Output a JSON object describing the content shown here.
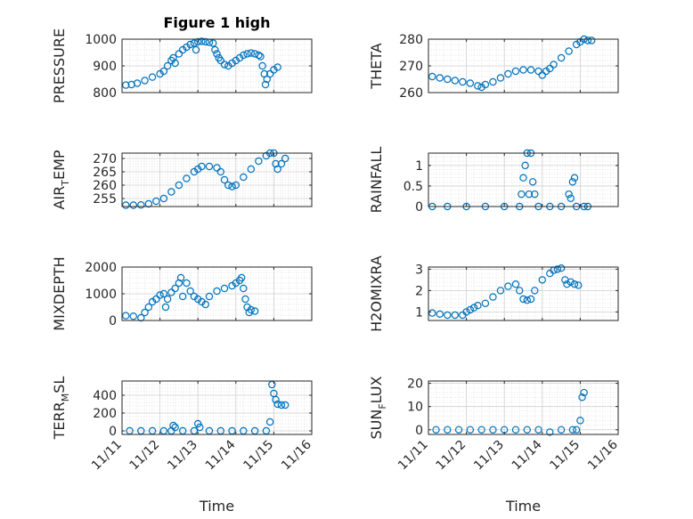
{
  "figure_title": "Figure 1 high",
  "marker_color": "#0072bd",
  "chart_data": [
    {
      "type": "scatter",
      "ylabel": "PRESSURE",
      "title": "Figure 1 high",
      "grid": true,
      "xlim": [
        0,
        5
      ],
      "ylim": [
        800,
        1000
      ],
      "yticks": [
        800,
        900,
        1000
      ],
      "ytick_labels": [
        "800",
        "900",
        "1000"
      ],
      "xticks": [
        0,
        1,
        2,
        3,
        4,
        5
      ],
      "xtick_labels": [],
      "xlabel": "",
      "points": [
        [
          0.1,
          828
        ],
        [
          0.25,
          830
        ],
        [
          0.4,
          835
        ],
        [
          0.6,
          845
        ],
        [
          0.8,
          858
        ],
        [
          1.0,
          870
        ],
        [
          1.1,
          880
        ],
        [
          1.2,
          900
        ],
        [
          1.3,
          920
        ],
        [
          1.35,
          930
        ],
        [
          1.4,
          910
        ],
        [
          1.5,
          945
        ],
        [
          1.6,
          960
        ],
        [
          1.7,
          970
        ],
        [
          1.8,
          980
        ],
        [
          1.9,
          985
        ],
        [
          1.95,
          960
        ],
        [
          2.0,
          990
        ],
        [
          2.1,
          992
        ],
        [
          2.2,
          990
        ],
        [
          2.3,
          988
        ],
        [
          2.4,
          985
        ],
        [
          2.45,
          960
        ],
        [
          2.5,
          945
        ],
        [
          2.55,
          930
        ],
        [
          2.6,
          920
        ],
        [
          2.7,
          905
        ],
        [
          2.8,
          900
        ],
        [
          2.9,
          910
        ],
        [
          3.0,
          920
        ],
        [
          3.1,
          930
        ],
        [
          3.2,
          940
        ],
        [
          3.3,
          945
        ],
        [
          3.4,
          948
        ],
        [
          3.5,
          945
        ],
        [
          3.6,
          940
        ],
        [
          3.65,
          935
        ],
        [
          3.7,
          900
        ],
        [
          3.75,
          870
        ],
        [
          3.78,
          830
        ],
        [
          3.82,
          850
        ],
        [
          3.9,
          870
        ],
        [
          4.0,
          885
        ],
        [
          4.1,
          895
        ]
      ]
    },
    {
      "type": "scatter",
      "ylabel": "THETA",
      "grid": true,
      "xlim": [
        0,
        5
      ],
      "ylim": [
        260,
        280
      ],
      "yticks": [
        260,
        270,
        280
      ],
      "ytick_labels": [
        "260",
        "270",
        "280"
      ],
      "xticks": [
        0,
        1,
        2,
        3,
        4,
        5
      ],
      "xtick_labels": [],
      "xlabel": "",
      "points": [
        [
          0.1,
          266
        ],
        [
          0.3,
          265.5
        ],
        [
          0.5,
          265
        ],
        [
          0.7,
          264.5
        ],
        [
          0.9,
          264
        ],
        [
          1.1,
          263.5
        ],
        [
          1.3,
          262.5
        ],
        [
          1.4,
          262
        ],
        [
          1.5,
          263
        ],
        [
          1.7,
          264
        ],
        [
          1.9,
          265.5
        ],
        [
          2.1,
          267
        ],
        [
          2.3,
          268
        ],
        [
          2.5,
          268.5
        ],
        [
          2.7,
          268.5
        ],
        [
          2.9,
          268
        ],
        [
          3.0,
          266.5
        ],
        [
          3.1,
          268
        ],
        [
          3.2,
          269
        ],
        [
          3.3,
          270.5
        ],
        [
          3.5,
          273
        ],
        [
          3.7,
          275.5
        ],
        [
          3.9,
          278
        ],
        [
          4.0,
          279
        ],
        [
          4.1,
          280
        ],
        [
          4.2,
          279.5
        ],
        [
          4.3,
          279.5
        ]
      ]
    },
    {
      "type": "scatter",
      "ylabel": "AIR_TEMP",
      "ylabel_parts": [
        "AIR",
        "T",
        "EMP"
      ],
      "grid": true,
      "xlim": [
        0,
        5
      ],
      "ylim": [
        252,
        272
      ],
      "yticks": [
        255,
        260,
        265,
        270
      ],
      "ytick_labels": [
        "255",
        "260",
        "265",
        "270"
      ],
      "xticks": [
        0,
        1,
        2,
        3,
        4,
        5
      ],
      "xtick_labels": [],
      "xlabel": "",
      "points": [
        [
          0.1,
          252.5
        ],
        [
          0.3,
          252.5
        ],
        [
          0.5,
          252.6
        ],
        [
          0.7,
          253
        ],
        [
          0.9,
          254
        ],
        [
          1.1,
          255
        ],
        [
          1.3,
          257.5
        ],
        [
          1.5,
          260
        ],
        [
          1.7,
          262.5
        ],
        [
          1.9,
          265
        ],
        [
          2.0,
          266
        ],
        [
          2.1,
          267
        ],
        [
          2.3,
          267
        ],
        [
          2.5,
          266.5
        ],
        [
          2.6,
          265
        ],
        [
          2.7,
          262
        ],
        [
          2.8,
          260
        ],
        [
          2.9,
          259.5
        ],
        [
          3.0,
          260
        ],
        [
          3.2,
          263
        ],
        [
          3.4,
          266
        ],
        [
          3.6,
          269
        ],
        [
          3.8,
          271
        ],
        [
          3.9,
          272
        ],
        [
          4.0,
          272
        ],
        [
          4.05,
          268
        ],
        [
          4.1,
          266
        ],
        [
          4.2,
          268
        ],
        [
          4.3,
          270
        ]
      ]
    },
    {
      "type": "scatter",
      "ylabel": "RAINFALL",
      "grid": true,
      "xlim": [
        0,
        5
      ],
      "ylim": [
        0,
        1.3
      ],
      "yticks": [
        0,
        0.5,
        1
      ],
      "ytick_labels": [
        "0",
        "0.5",
        "1"
      ],
      "xticks": [
        0,
        1,
        2,
        3,
        4,
        5
      ],
      "xtick_labels": [],
      "xlabel": "",
      "points": [
        [
          0.1,
          0
        ],
        [
          0.5,
          0
        ],
        [
          1.0,
          0
        ],
        [
          1.5,
          0
        ],
        [
          2.0,
          0
        ],
        [
          2.4,
          0
        ],
        [
          2.45,
          0.3
        ],
        [
          2.5,
          0.7
        ],
        [
          2.55,
          1.0
        ],
        [
          2.6,
          1.3
        ],
        [
          2.65,
          0.3
        ],
        [
          2.7,
          1.3
        ],
        [
          2.75,
          0.6
        ],
        [
          2.8,
          0.3
        ],
        [
          2.9,
          0
        ],
        [
          3.2,
          0
        ],
        [
          3.5,
          0
        ],
        [
          3.7,
          0.3
        ],
        [
          3.75,
          0.2
        ],
        [
          3.8,
          0.6
        ],
        [
          3.85,
          0.7
        ],
        [
          3.9,
          0
        ],
        [
          4.1,
          0
        ],
        [
          4.2,
          0
        ]
      ]
    },
    {
      "type": "scatter",
      "ylabel": "MIXDEPTH",
      "grid": true,
      "xlim": [
        0,
        5
      ],
      "ylim": [
        0,
        2000
      ],
      "yticks": [
        0,
        1000,
        2000
      ],
      "ytick_labels": [
        "0",
        "1000",
        "2000"
      ],
      "xticks": [
        0,
        1,
        2,
        3,
        4,
        5
      ],
      "xtick_labels": [],
      "xlabel": "",
      "points": [
        [
          0.1,
          180
        ],
        [
          0.3,
          160
        ],
        [
          0.5,
          100
        ],
        [
          0.6,
          300
        ],
        [
          0.7,
          500
        ],
        [
          0.8,
          700
        ],
        [
          0.9,
          800
        ],
        [
          1.0,
          950
        ],
        [
          1.1,
          1000
        ],
        [
          1.15,
          500
        ],
        [
          1.2,
          800
        ],
        [
          1.3,
          1050
        ],
        [
          1.4,
          1200
        ],
        [
          1.5,
          1400
        ],
        [
          1.55,
          1600
        ],
        [
          1.6,
          900
        ],
        [
          1.7,
          1400
        ],
        [
          1.8,
          1100
        ],
        [
          1.9,
          900
        ],
        [
          2.0,
          800
        ],
        [
          2.1,
          700
        ],
        [
          2.2,
          600
        ],
        [
          2.3,
          900
        ],
        [
          2.5,
          1100
        ],
        [
          2.7,
          1200
        ],
        [
          2.9,
          1300
        ],
        [
          3.0,
          1400
        ],
        [
          3.1,
          1500
        ],
        [
          3.15,
          1600
        ],
        [
          3.2,
          1200
        ],
        [
          3.25,
          800
        ],
        [
          3.3,
          500
        ],
        [
          3.35,
          300
        ],
        [
          3.4,
          400
        ],
        [
          3.5,
          350
        ]
      ]
    },
    {
      "type": "scatter",
      "ylabel": "H2OMIXRA",
      "grid": true,
      "xlim": [
        0,
        5
      ],
      "ylim": [
        0.6,
        3.1
      ],
      "yticks": [
        1,
        2,
        3
      ],
      "ytick_labels": [
        "1",
        "2",
        "3"
      ],
      "xticks": [
        0,
        1,
        2,
        3,
        4,
        5
      ],
      "xtick_labels": [],
      "xlabel": "",
      "points": [
        [
          0.1,
          0.95
        ],
        [
          0.3,
          0.9
        ],
        [
          0.5,
          0.85
        ],
        [
          0.7,
          0.85
        ],
        [
          0.9,
          0.85
        ],
        [
          1.0,
          1.0
        ],
        [
          1.1,
          1.1
        ],
        [
          1.2,
          1.2
        ],
        [
          1.3,
          1.3
        ],
        [
          1.5,
          1.4
        ],
        [
          1.7,
          1.7
        ],
        [
          1.9,
          2.0
        ],
        [
          2.1,
          2.2
        ],
        [
          2.3,
          2.3
        ],
        [
          2.4,
          2.0
        ],
        [
          2.5,
          1.6
        ],
        [
          2.6,
          1.55
        ],
        [
          2.7,
          1.6
        ],
        [
          2.8,
          2.0
        ],
        [
          3.0,
          2.5
        ],
        [
          3.2,
          2.8
        ],
        [
          3.3,
          2.95
        ],
        [
          3.4,
          3.0
        ],
        [
          3.5,
          3.05
        ],
        [
          3.6,
          2.5
        ],
        [
          3.65,
          2.3
        ],
        [
          3.75,
          2.4
        ],
        [
          3.85,
          2.3
        ],
        [
          3.95,
          2.25
        ]
      ]
    },
    {
      "type": "scatter",
      "ylabel": "TERR_MSL",
      "ylabel_parts": [
        "TERR",
        "M",
        "SL"
      ],
      "grid": true,
      "xlim": [
        0,
        5
      ],
      "ylim": [
        -40,
        560
      ],
      "yticks": [
        0,
        200,
        400
      ],
      "ytick_labels": [
        "0",
        "200",
        "400"
      ],
      "xticks": [
        0,
        1,
        2,
        3,
        4,
        5
      ],
      "xtick_labels": [
        "11/11",
        "11/12",
        "11/13",
        "11/14",
        "11/15",
        "11/16"
      ],
      "xlabel": "Time",
      "points": [
        [
          0.2,
          0
        ],
        [
          0.5,
          0
        ],
        [
          0.8,
          0
        ],
        [
          1.1,
          0
        ],
        [
          1.3,
          0
        ],
        [
          1.35,
          60
        ],
        [
          1.4,
          40
        ],
        [
          1.6,
          0
        ],
        [
          1.9,
          0
        ],
        [
          2.0,
          80
        ],
        [
          2.05,
          40
        ],
        [
          2.3,
          0
        ],
        [
          2.6,
          0
        ],
        [
          2.9,
          0
        ],
        [
          3.2,
          0
        ],
        [
          3.5,
          0
        ],
        [
          3.8,
          0
        ],
        [
          3.9,
          100
        ],
        [
          3.95,
          520
        ],
        [
          4.0,
          420
        ],
        [
          4.05,
          350
        ],
        [
          4.1,
          300
        ],
        [
          4.2,
          290
        ],
        [
          4.3,
          290
        ]
      ]
    },
    {
      "type": "scatter",
      "ylabel": "SUN_FLUX",
      "ylabel_parts": [
        "SUN",
        "F",
        "LUX"
      ],
      "grid": true,
      "xlim": [
        0,
        5
      ],
      "ylim": [
        -2,
        21
      ],
      "yticks": [
        0,
        10,
        20
      ],
      "ytick_labels": [
        "0",
        "10",
        "20"
      ],
      "xticks": [
        0,
        1,
        2,
        3,
        4,
        5
      ],
      "xtick_labels": [
        "11/11",
        "11/12",
        "11/13",
        "11/14",
        "11/15",
        "11/16"
      ],
      "xlabel": "Time",
      "points": [
        [
          0.2,
          0
        ],
        [
          0.5,
          0
        ],
        [
          0.8,
          0
        ],
        [
          1.1,
          0
        ],
        [
          1.4,
          0
        ],
        [
          1.7,
          0
        ],
        [
          2.0,
          0
        ],
        [
          2.3,
          0
        ],
        [
          2.6,
          0
        ],
        [
          2.9,
          0
        ],
        [
          3.2,
          -1
        ],
        [
          3.5,
          0
        ],
        [
          3.8,
          0
        ],
        [
          3.9,
          0
        ],
        [
          4.0,
          4
        ],
        [
          4.05,
          14
        ],
        [
          4.1,
          16
        ]
      ]
    }
  ]
}
